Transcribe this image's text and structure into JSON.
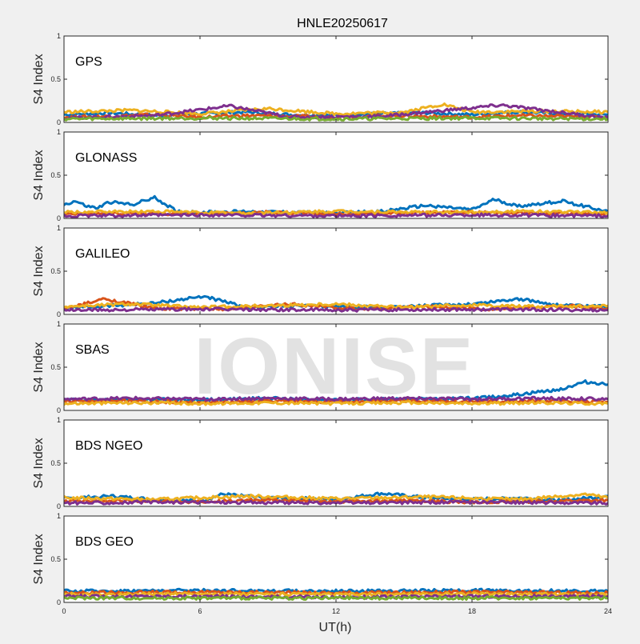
{
  "chart_data": {
    "type": "scatter",
    "title": "HNLE20250617",
    "xlabel": "UT(h)",
    "ylabel": "S4 Index",
    "xlim": [
      0,
      24
    ],
    "ylim": [
      0,
      1
    ],
    "x_ticks": [
      "0",
      "6",
      "12",
      "18",
      "24"
    ],
    "y_ticks": [
      "0",
      "0.5",
      "1"
    ],
    "watermark": "IONISE",
    "grid": false,
    "colors": [
      "#0072bd",
      "#d95319",
      "#edb120",
      "#7e2f8e",
      "#77ac30",
      "#4dbeee",
      "#a2142f"
    ],
    "panels": [
      {
        "name": "GPS",
        "series": [
          {
            "x": [
              0,
              2,
              4,
              6,
              8,
              10,
              12,
              14,
              16,
              18,
              20,
              22,
              24
            ],
            "y": [
              0.09,
              0.11,
              0.08,
              0.1,
              0.12,
              0.09,
              0.08,
              0.1,
              0.11,
              0.09,
              0.12,
              0.1,
              0.09
            ]
          },
          {
            "x": [
              0,
              2,
              4,
              6,
              8,
              10,
              12,
              14,
              16,
              18,
              20,
              22,
              24
            ],
            "y": [
              0.06,
              0.07,
              0.09,
              0.06,
              0.08,
              0.07,
              0.06,
              0.08,
              0.07,
              0.06,
              0.08,
              0.07,
              0.06
            ]
          },
          {
            "x": [
              0,
              3,
              6,
              9,
              12,
              15,
              16.7,
              18,
              21,
              24
            ],
            "y": [
              0.12,
              0.14,
              0.1,
              0.16,
              0.1,
              0.12,
              0.21,
              0.12,
              0.13,
              0.12
            ]
          },
          {
            "x": [
              0,
              4,
              7.3,
              10,
              14,
              19.3,
              24
            ],
            "y": [
              0.05,
              0.08,
              0.19,
              0.06,
              0.07,
              0.2,
              0.05
            ]
          },
          {
            "x": [
              0,
              6,
              12,
              18,
              24
            ],
            "y": [
              0.04,
              0.05,
              0.04,
              0.05,
              0.04
            ]
          }
        ]
      },
      {
        "name": "GLONASS",
        "series": [
          {
            "x": [
              0,
              0.5,
              1,
              1.5,
              2,
              3,
              4,
              5,
              6,
              8,
              10,
              12,
              14,
              16,
              18,
              19,
              20,
              22,
              24
            ],
            "y": [
              0.16,
              0.2,
              0.14,
              0.12,
              0.19,
              0.16,
              0.24,
              0.08,
              0.07,
              0.08,
              0.07,
              0.06,
              0.08,
              0.15,
              0.1,
              0.22,
              0.14,
              0.2,
              0.08
            ]
          },
          {
            "x": [
              0,
              3,
              6,
              9,
              12,
              15,
              18,
              21,
              24
            ],
            "y": [
              0.05,
              0.06,
              0.05,
              0.07,
              0.05,
              0.06,
              0.07,
              0.06,
              0.05
            ]
          },
          {
            "x": [
              0,
              4,
              8,
              12,
              16,
              20,
              24
            ],
            "y": [
              0.07,
              0.08,
              0.06,
              0.08,
              0.07,
              0.08,
              0.07
            ]
          },
          {
            "x": [
              0,
              6,
              12,
              18,
              24
            ],
            "y": [
              0.03,
              0.04,
              0.03,
              0.04,
              0.03
            ]
          }
        ]
      },
      {
        "name": "GALILEO",
        "series": [
          {
            "x": [
              0,
              2,
              4,
              6.2,
              8,
              10,
              12,
              14,
              16,
              18,
              20,
              22,
              24
            ],
            "y": [
              0.07,
              0.1,
              0.13,
              0.21,
              0.08,
              0.1,
              0.09,
              0.08,
              0.1,
              0.12,
              0.18,
              0.1,
              0.09
            ]
          },
          {
            "x": [
              0,
              1.8,
              4,
              7,
              10,
              13,
              16,
              19,
              22,
              24
            ],
            "y": [
              0.06,
              0.18,
              0.07,
              0.06,
              0.12,
              0.06,
              0.09,
              0.06,
              0.1,
              0.07
            ]
          },
          {
            "x": [
              0,
              3,
              6,
              9,
              12,
              15,
              18,
              21,
              24
            ],
            "y": [
              0.09,
              0.12,
              0.08,
              0.1,
              0.12,
              0.08,
              0.11,
              0.09,
              0.1
            ]
          },
          {
            "x": [
              0,
              6,
              12,
              18,
              24
            ],
            "y": [
              0.05,
              0.06,
              0.05,
              0.06,
              0.05
            ]
          }
        ]
      },
      {
        "name": "SBAS",
        "series": [
          {
            "x": [
              0,
              3,
              6,
              9,
              12,
              15,
              18,
              20,
              22,
              23,
              24
            ],
            "y": [
              0.12,
              0.13,
              0.12,
              0.14,
              0.12,
              0.13,
              0.14,
              0.18,
              0.25,
              0.33,
              0.3
            ]
          },
          {
            "x": [
              0,
              3,
              6,
              9,
              12,
              15,
              18,
              21,
              24
            ],
            "y": [
              0.1,
              0.11,
              0.09,
              0.11,
              0.1,
              0.11,
              0.1,
              0.11,
              0.1
            ]
          },
          {
            "x": [
              0,
              3,
              6,
              9,
              12,
              15,
              18,
              21,
              24
            ],
            "y": [
              0.08,
              0.09,
              0.08,
              0.09,
              0.08,
              0.09,
              0.08,
              0.09,
              0.08
            ]
          },
          {
            "x": [
              0,
              3,
              6,
              9,
              12,
              15,
              18,
              21,
              24
            ],
            "y": [
              0.13,
              0.14,
              0.13,
              0.14,
              0.13,
              0.14,
              0.13,
              0.14,
              0.13
            ]
          }
        ]
      },
      {
        "name": "BDS NGEO",
        "series": [
          {
            "x": [
              0,
              2,
              4,
              6,
              7,
              9,
              12,
              14,
              16,
              18,
              20,
              22,
              24
            ],
            "y": [
              0.09,
              0.12,
              0.08,
              0.06,
              0.14,
              0.1,
              0.08,
              0.15,
              0.1,
              0.08,
              0.1,
              0.07,
              0.12
            ]
          },
          {
            "x": [
              0,
              3,
              6,
              9,
              12,
              15,
              18,
              21,
              24
            ],
            "y": [
              0.06,
              0.07,
              0.05,
              0.08,
              0.06,
              0.07,
              0.05,
              0.06,
              0.07
            ]
          },
          {
            "x": [
              0,
              4,
              8,
              12,
              16,
              20,
              23,
              24
            ],
            "y": [
              0.1,
              0.08,
              0.12,
              0.09,
              0.11,
              0.08,
              0.14,
              0.1
            ]
          },
          {
            "x": [
              0,
              6,
              12,
              18,
              24
            ],
            "y": [
              0.04,
              0.05,
              0.04,
              0.05,
              0.04
            ]
          }
        ]
      },
      {
        "name": "BDS GEO",
        "series": [
          {
            "x": [
              0,
              6,
              12,
              18,
              24
            ],
            "y": [
              0.13,
              0.14,
              0.13,
              0.14,
              0.13
            ]
          },
          {
            "x": [
              0,
              6,
              12,
              18,
              24
            ],
            "y": [
              0.11,
              0.12,
              0.11,
              0.12,
              0.11
            ]
          },
          {
            "x": [
              0,
              6,
              12,
              18,
              24
            ],
            "y": [
              0.09,
              0.1,
              0.09,
              0.1,
              0.09
            ]
          },
          {
            "x": [
              0,
              6,
              12,
              18,
              24
            ],
            "y": [
              0.07,
              0.07,
              0.06,
              0.07,
              0.07
            ]
          },
          {
            "x": [
              0,
              6,
              12,
              18,
              24
            ],
            "y": [
              0.05,
              0.05,
              0.05,
              0.05,
              0.05
            ]
          }
        ]
      }
    ]
  }
}
